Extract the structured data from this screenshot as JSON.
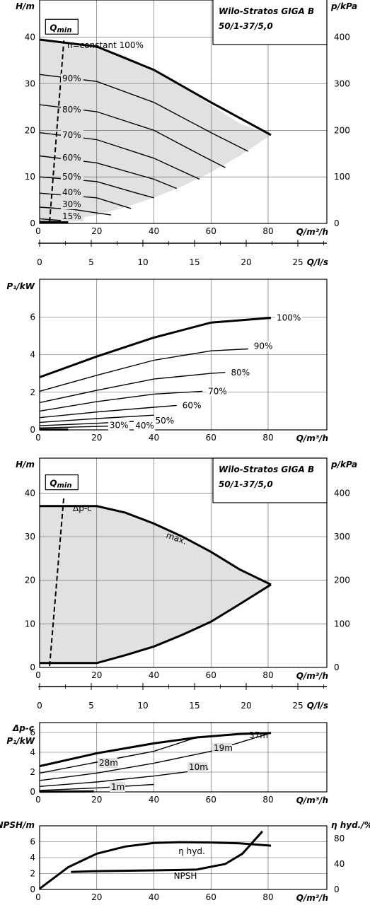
{
  "chart_data": [
    {
      "id": "hq",
      "type": "line",
      "title_lines": [
        "Wilo-Stratos GIGA B",
        "50/1-37/5,0"
      ],
      "qmin_label": "Q",
      "qmin_sub": "min",
      "xlabel": "Q/m³/h",
      "ylabel": "H/m",
      "y2label": "p/kPa",
      "xlim": [
        0,
        100
      ],
      "ylim": [
        0,
        48
      ],
      "xticks": [
        "0",
        "20",
        "40",
        "60",
        "80"
      ],
      "yticks": [
        "0",
        "10",
        "20",
        "30",
        "40"
      ],
      "y2ticks": [
        "0",
        "100",
        "200",
        "300",
        "400"
      ],
      "fill_region": {
        "x": [
          0,
          10,
          20,
          30,
          40,
          50,
          60,
          70,
          81,
          70,
          60,
          50,
          40,
          30,
          20,
          10,
          0
        ],
        "y": [
          39.5,
          39,
          38,
          36,
          33,
          29.5,
          25.5,
          21.5,
          19,
          14.5,
          11,
          8,
          5.5,
          3.5,
          1.8,
          0.8,
          0.3
        ]
      },
      "qmin_line": {
        "x": [
          3.5,
          8.5
        ],
        "y": [
          0.3,
          39.3
        ]
      },
      "series": [
        {
          "name": "n=constant 100%",
          "bold": true,
          "x": [
            0,
            20,
            40,
            60,
            81
          ],
          "y": [
            39.5,
            38,
            33,
            26,
            19
          ]
        },
        {
          "name": "90%",
          "x": [
            0,
            20,
            40,
            60,
            73
          ],
          "y": [
            32,
            30.5,
            26,
            19.5,
            15.5
          ]
        },
        {
          "name": "80%",
          "x": [
            0,
            20,
            40,
            57,
            65
          ],
          "y": [
            25.5,
            24,
            20,
            14.5,
            12
          ]
        },
        {
          "name": "70%",
          "x": [
            0,
            20,
            40,
            56
          ],
          "y": [
            19.5,
            18,
            14,
            9.5
          ]
        },
        {
          "name": "60%",
          "x": [
            0,
            20,
            40,
            48
          ],
          "y": [
            14.5,
            13,
            9.5,
            7.5
          ]
        },
        {
          "name": "50%",
          "x": [
            0,
            20,
            34,
            40
          ],
          "y": [
            10,
            9,
            6.5,
            5.5
          ]
        },
        {
          "name": "40%",
          "x": [
            0,
            20,
            32
          ],
          "y": [
            6.5,
            5.5,
            3.2
          ]
        },
        {
          "name": "30%",
          "x": [
            0,
            12,
            25
          ],
          "y": [
            3.5,
            3,
            1.8
          ]
        },
        {
          "name": "15%",
          "x": [
            0,
            10
          ],
          "y": [
            1,
            0.5
          ]
        },
        {
          "name": "",
          "bold": true,
          "x": [
            0,
            10
          ],
          "y": [
            0.3,
            0.3
          ]
        }
      ]
    },
    {
      "id": "axis1",
      "type": "axis",
      "xlabel": "Q/l/s",
      "xlim": [
        0,
        27.78
      ],
      "xticks": [
        "0",
        "5",
        "10",
        "15",
        "20",
        "25"
      ]
    },
    {
      "id": "p1",
      "type": "line",
      "xlabel": "Q/m³/h",
      "ylabel": "P₁/kW",
      "xlim": [
        0,
        100
      ],
      "ylim": [
        0,
        8
      ],
      "xticks": [
        "0",
        "20",
        "40",
        "60",
        "80"
      ],
      "yticks": [
        "0",
        "2",
        "4",
        "6"
      ],
      "series": [
        {
          "name": "100%",
          "bold": true,
          "x": [
            0,
            20,
            40,
            60,
            81
          ],
          "y": [
            2.8,
            3.9,
            4.9,
            5.7,
            5.95
          ]
        },
        {
          "name": "90%",
          "x": [
            0,
            20,
            40,
            60,
            73
          ],
          "y": [
            2.05,
            2.9,
            3.7,
            4.2,
            4.3
          ]
        },
        {
          "name": "80%",
          "x": [
            0,
            20,
            40,
            60,
            65
          ],
          "y": [
            1.45,
            2.1,
            2.7,
            3.0,
            3.05
          ]
        },
        {
          "name": "70%",
          "x": [
            0,
            20,
            40,
            57
          ],
          "y": [
            1.0,
            1.5,
            1.9,
            2.05
          ]
        },
        {
          "name": "60%",
          "x": [
            0,
            20,
            40,
            48
          ],
          "y": [
            0.65,
            0.95,
            1.2,
            1.3
          ]
        },
        {
          "name": "50%",
          "x": [
            0,
            20,
            40
          ],
          "y": [
            0.4,
            0.6,
            0.78
          ]
        },
        {
          "name": "40%",
          "x": [
            0,
            20,
            33
          ],
          "y": [
            0.22,
            0.35,
            0.45
          ]
        },
        {
          "name": "30%",
          "x": [
            0,
            15,
            24
          ],
          "y": [
            0.1,
            0.16,
            0.2
          ]
        },
        {
          "name": "",
          "bold": true,
          "x": [
            0,
            10
          ],
          "y": [
            0.02,
            0.02
          ]
        }
      ]
    },
    {
      "id": "hq2",
      "type": "line",
      "title_lines": [
        "Wilo-Stratos GIGA B",
        "50/1-37/5,0"
      ],
      "qmin_label": "Q",
      "qmin_sub": "min",
      "mode_label": "Δp-c",
      "max_label": "max.",
      "xlabel": "Q/m³/h",
      "ylabel": "H/m",
      "y2label": "p/kPa",
      "xlim": [
        0,
        100
      ],
      "ylim": [
        0,
        48
      ],
      "xticks": [
        "0",
        "20",
        "40",
        "60",
        "80"
      ],
      "yticks": [
        "0",
        "10",
        "20",
        "30",
        "40"
      ],
      "y2ticks": [
        "0",
        "100",
        "200",
        "300",
        "400"
      ],
      "fill_region": {
        "x": [
          0,
          20,
          30,
          40,
          50,
          60,
          70,
          81,
          70,
          60,
          50,
          40,
          30,
          20,
          0
        ],
        "y": [
          37,
          37,
          35.5,
          33,
          30,
          26.5,
          22.5,
          19,
          14.5,
          10.5,
          7.5,
          4.8,
          2.8,
          1,
          1
        ]
      },
      "qmin_line": {
        "x": [
          3.5,
          8.5
        ],
        "y": [
          0.3,
          39.3
        ]
      },
      "series": [
        {
          "name": "",
          "bold": true,
          "x": [
            0,
            20,
            30,
            40,
            50,
            60,
            70,
            81
          ],
          "y": [
            37,
            37,
            35.5,
            33,
            30,
            26.5,
            22.5,
            19
          ]
        },
        {
          "name": "",
          "bold": true,
          "x": [
            81,
            70,
            60,
            50,
            40,
            30,
            20,
            0
          ],
          "y": [
            19,
            14.5,
            10.5,
            7.5,
            4.8,
            2.8,
            1,
            1
          ]
        }
      ]
    },
    {
      "id": "axis2",
      "type": "axis",
      "xlabel": "Q/l/s",
      "xlim": [
        0,
        27.78
      ],
      "xticks": [
        "0",
        "5",
        "10",
        "15",
        "20",
        "25"
      ]
    },
    {
      "id": "p2",
      "type": "line",
      "ylabel_top": "Δp-c",
      "ylabel": "P₁/kW",
      "xlabel": "Q/m³/h",
      "xlim": [
        0,
        100
      ],
      "ylim": [
        0,
        7
      ],
      "xticks": [
        "0",
        "20",
        "40",
        "60",
        "80"
      ],
      "yticks": [
        "0",
        "2",
        "4",
        "6"
      ],
      "series": [
        {
          "name": "37m",
          "bold": true,
          "x": [
            0,
            20,
            40,
            55,
            70,
            81
          ],
          "y": [
            2.6,
            3.9,
            4.9,
            5.5,
            5.85,
            5.95
          ]
        },
        {
          "name": "28m",
          "x": [
            0,
            20,
            40,
            55
          ],
          "y": [
            1.9,
            3.0,
            4.1,
            5.5
          ]
        },
        {
          "name": "19m",
          "x": [
            0,
            20,
            40,
            60,
            81
          ],
          "y": [
            1.15,
            1.9,
            2.9,
            4.1,
            5.95
          ]
        },
        {
          "name": "10m",
          "x": [
            0,
            20,
            40,
            59
          ],
          "y": [
            0.55,
            1.0,
            1.6,
            2.3
          ]
        },
        {
          "name": "1m",
          "x": [
            0,
            20,
            40
          ],
          "y": [
            0.15,
            0.4,
            0.75
          ]
        },
        {
          "name": "",
          "bold": true,
          "x": [
            0,
            19
          ],
          "y": [
            0.02,
            0.05
          ]
        }
      ]
    },
    {
      "id": "npsh",
      "type": "line",
      "ylabel": "NPSH/m",
      "y2label": "η hyd./%",
      "xlabel": "Q/m³/h",
      "xlim": [
        0,
        100
      ],
      "ylim": [
        0,
        8
      ],
      "y2lim": [
        0,
        100
      ],
      "xticks": [
        "0",
        "20",
        "40",
        "60",
        "80"
      ],
      "yticks": [
        "0",
        "2",
        "4",
        "6"
      ],
      "y2ticks": [
        "0",
        "40",
        "80"
      ],
      "series": [
        {
          "name": "η hyd.",
          "bold": true,
          "x": [
            0,
            10,
            20,
            30,
            40,
            50,
            60,
            70,
            81
          ],
          "y": [
            0.1,
            2.8,
            4.5,
            5.4,
            5.85,
            5.95,
            5.9,
            5.8,
            5.5
          ]
        },
        {
          "name": "NPSH",
          "bold": true,
          "x": [
            11,
            20,
            40,
            55,
            65,
            71,
            78
          ],
          "y": [
            2.2,
            2.3,
            2.4,
            2.5,
            3.2,
            4.5,
            7.3
          ]
        }
      ]
    }
  ]
}
